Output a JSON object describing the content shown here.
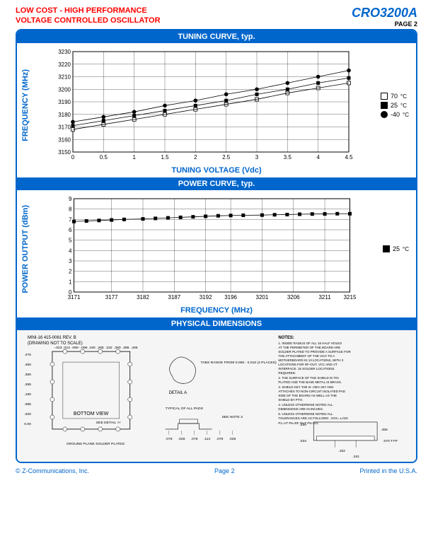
{
  "header": {
    "title_line1": "LOW COST - HIGH PERFORMANCE",
    "title_line2": "VOLTAGE CONTROLLED OSCILLATOR",
    "part": "CRO3200A",
    "page_top": "PAGE 2"
  },
  "tuning": {
    "section": "TUNING CURVE, typ.",
    "ylabel": "FREQUENCY (MHz)",
    "xlabel": "TUNING VOLTAGE (Vdc)",
    "ylim": [
      3150,
      3230
    ],
    "ytick_step": 10,
    "xlim": [
      0,
      4.5
    ],
    "xtick_step": 0.5,
    "xticks": [
      "0",
      "0.5",
      "1",
      "1.5",
      "2",
      "2.5",
      "3",
      "3.5",
      "4",
      "4.5"
    ],
    "yticks": [
      "3150",
      "3160",
      "3170",
      "3180",
      "3190",
      "3200",
      "3210",
      "3220",
      "3230"
    ],
    "grid_color": "#000000",
    "series": [
      {
        "name": "70",
        "marker": "square-open",
        "values": [
          3168,
          3172,
          3176,
          3180,
          3184,
          3188,
          3192,
          3197,
          3201,
          3205
        ]
      },
      {
        "name": "25",
        "marker": "square-filled",
        "values": [
          3171,
          3175,
          3179,
          3183,
          3187,
          3191,
          3196,
          3200,
          3205,
          3209
        ]
      },
      {
        "name": "-40",
        "marker": "circle-filled",
        "values": [
          3174,
          3178,
          3182,
          3187,
          3191,
          3196,
          3200,
          3205,
          3210,
          3215
        ]
      }
    ],
    "legend": [
      {
        "label": "70",
        "unit": "°C",
        "marker": "square-open"
      },
      {
        "label": "25",
        "unit": "°C",
        "marker": "square-filled"
      },
      {
        "label": "-40",
        "unit": "°C",
        "marker": "circle-filled"
      }
    ]
  },
  "power": {
    "section": "POWER CURVE, typ.",
    "ylabel": "POWER OUTPUT (dBm)",
    "xlabel": "FREQUENCY (MHz)",
    "ylim": [
      0,
      9
    ],
    "ytick_step": 1,
    "yticks": [
      "0",
      "1",
      "2",
      "3",
      "4",
      "5",
      "6",
      "7",
      "8",
      "9"
    ],
    "xticks": [
      "3171",
      "3177",
      "3182",
      "3187",
      "3192",
      "3196",
      "3201",
      "3206",
      "3211",
      "3215"
    ],
    "grid_color": "#000000",
    "series": [
      {
        "name": "25",
        "marker": "square-filled",
        "x": [
          3171,
          3173,
          3175,
          3177,
          3179,
          3182,
          3184,
          3186,
          3188,
          3190,
          3192,
          3194,
          3196,
          3198,
          3201,
          3203,
          3205,
          3207,
          3209,
          3211,
          3213,
          3215
        ],
        "y": [
          6.8,
          6.85,
          6.9,
          6.95,
          7.0,
          7.05,
          7.1,
          7.15,
          7.2,
          7.25,
          7.3,
          7.35,
          7.38,
          7.4,
          7.42,
          7.45,
          7.47,
          7.5,
          7.52,
          7.53,
          7.55,
          7.55
        ]
      }
    ],
    "legend": [
      {
        "label": "25",
        "unit": "°C",
        "marker": "square-filled"
      }
    ]
  },
  "phys": {
    "section": "PHYSICAL DIMENSIONS",
    "drawing_title": "MINI-16   415-0061 REV. B",
    "drawing_sub": "(DRAWING NOT TO SCALE)",
    "bottom_view": "BOTTOM VIEW",
    "detail_a": "DETAIL A",
    "tabs_note": "TABS RANGE FROM 0.006 - 0.010 (4 PLACES)",
    "pads_note": "TYPICAL OF ALL PADS",
    "see_note3": "SEE NOTE 3",
    "see_detail": "SEE DETAIL 'A'",
    "ground": "GROUND PLANE SOLDER PLATED",
    "dims_left": [
      ".475",
      ".450",
      ".380",
      ".285",
      ".190",
      ".095",
      ".020",
      "0.00",
      "-.023",
      ".023",
      ".090",
      "-.095",
      ".190",
      ".285",
      ".332",
      ".380",
      ".395",
      ".405",
      ".475",
      ".437"
    ],
    "dims_bottom": [
      ".078",
      ".028",
      ".078",
      ".114",
      ".078",
      ".028"
    ],
    "dims_side": [
      ".220",
      ".455",
      ".034",
      ".152",
      ".181",
      ".070 TYP"
    ],
    "notes_title": "NOTES:",
    "notes": [
      "1. INSIDE RADIUS OF ALL 16 HALF HOLES AT THE PERIMETER OF THE BOARD ARE SOLDER PLATED TO PROVIDE A SURFACE FOR THE ATTACHMENT OF THE VCO TO A MOTHERBOARD IN 13 LOCATIONS, WITH 3 LOCATIONS FOR RF-OUT, VCC AND VT INTERFACE. 16 SOLDER LOCATIONS REQUIRED.",
      "2. THE SURFACE OF THE SHIELD IS TIN PLATED AND THE BASE METAL IS BRASS.",
      "3. SHIELD KEY TAB IS .030×.047 AND ATTACHES TO NON-CIRCUIT ISOLATED PAD SIDE OF THE BOARD AS WELL AS THE SHIELD BY PTH.",
      "4. UNLESS OTHERWISE NOTED ALL DIMENSIONS ARE IN INCHES.",
      "5. UNLESS OTHERWISE NOTED ALL TOLERANCES ARE AS FOLLOWS: .XXX= ±.010",
      "P1=VT  P6=RF OUT  P9=Vcc"
    ]
  },
  "footer": {
    "left": "© Z-Communications, Inc.",
    "center": "Page 2",
    "right": "Printed in the U.S.A."
  }
}
